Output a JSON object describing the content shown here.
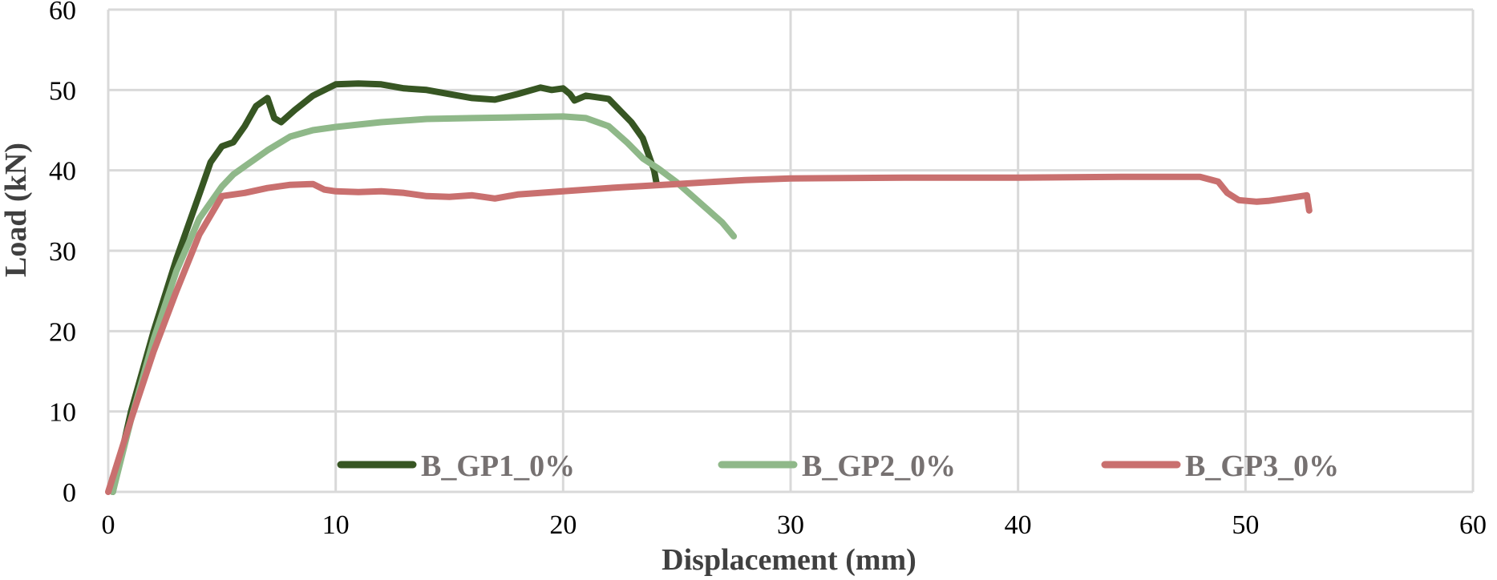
{
  "chart_data": {
    "type": "line",
    "title": "",
    "xlabel": "Displacement (mm)",
    "ylabel": "Load (kN)",
    "xlim": [
      0,
      60
    ],
    "ylim": [
      0,
      60
    ],
    "xticks": [
      0,
      10,
      20,
      30,
      40,
      50,
      60
    ],
    "yticks": [
      0,
      10,
      20,
      30,
      40,
      50,
      60
    ],
    "grid": true,
    "legend_position": "bottom-inside",
    "series": [
      {
        "name": "B_GP1_0%",
        "color": "#375623",
        "x": [
          0.2,
          1,
          2,
          3,
          4,
          4.5,
          5,
          5.5,
          6,
          6.5,
          7,
          7.3,
          7.6,
          8.2,
          9,
          10,
          11,
          12,
          13,
          14,
          15,
          16,
          17,
          18,
          19,
          19.5,
          20,
          20.3,
          20.5,
          21,
          22,
          23,
          23.5,
          24,
          24.1
        ],
        "y": [
          0,
          10,
          20,
          29,
          37,
          41,
          43,
          43.5,
          45.5,
          48,
          49,
          46.5,
          46,
          47.5,
          49.3,
          50.7,
          50.8,
          50.7,
          50.2,
          50,
          49.5,
          49,
          48.8,
          49.5,
          50.3,
          50,
          50.2,
          49.5,
          48.7,
          49.3,
          48.9,
          46,
          44,
          40,
          38.5
        ]
      },
      {
        "name": "B_GP2_0%",
        "color": "#8FB889",
        "x": [
          0.2,
          1,
          2,
          3,
          4,
          5,
          5.5,
          6,
          7,
          8,
          9,
          10,
          12,
          14,
          16,
          18,
          20,
          21,
          22,
          22.8,
          23.5,
          24.2,
          25,
          25.8,
          26.4,
          27,
          27.5
        ],
        "y": [
          0,
          9,
          19,
          27.5,
          34,
          38,
          39.5,
          40.5,
          42.5,
          44.2,
          45,
          45.4,
          46,
          46.4,
          46.5,
          46.6,
          46.7,
          46.5,
          45.5,
          43.5,
          41.5,
          40.2,
          38.5,
          36.5,
          35,
          33.5,
          31.8
        ]
      },
      {
        "name": "B_GP3_0%",
        "color": "#C9706F",
        "x": [
          0,
          1,
          2,
          3,
          4,
          5,
          5.5,
          6,
          7,
          8,
          9,
          9.5,
          10,
          11,
          12,
          13,
          14,
          15,
          16,
          17,
          18,
          20,
          22,
          25,
          28,
          30,
          35,
          40,
          45,
          48,
          48.8,
          49.2,
          49.7,
          50.5,
          51,
          52,
          52.7,
          52.8
        ],
        "y": [
          0,
          9,
          17.5,
          25,
          32,
          36.8,
          37,
          37.2,
          37.8,
          38.2,
          38.3,
          37.6,
          37.4,
          37.3,
          37.4,
          37.2,
          36.8,
          36.7,
          36.9,
          36.5,
          37,
          37.4,
          37.8,
          38.3,
          38.8,
          39,
          39.1,
          39.1,
          39.2,
          39.2,
          38.6,
          37.2,
          36.3,
          36.1,
          36.2,
          36.6,
          36.9,
          35
        ]
      }
    ]
  }
}
